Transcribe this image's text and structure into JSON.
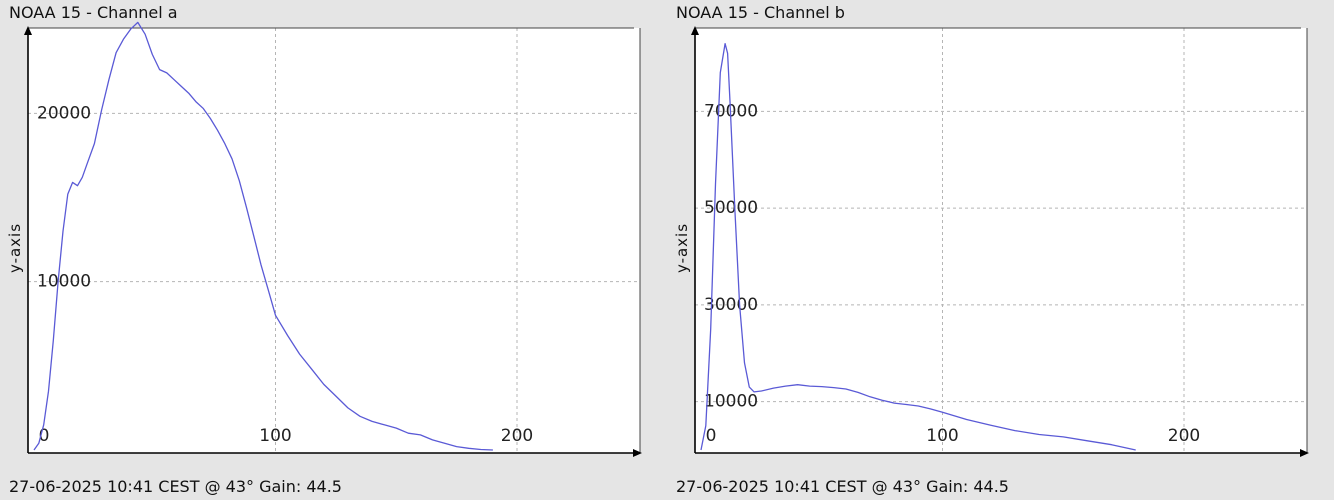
{
  "chart_data": [
    {
      "type": "line",
      "title": "NOAA 15 - Channel a",
      "footer": "27-06-2025 10:41 CEST @ 43° Gain: 44.5",
      "xlabel": "",
      "ylabel": "y-axis",
      "xlim": [
        0,
        250
      ],
      "ylim": [
        0,
        25500
      ],
      "grid": true,
      "legend": "none",
      "line_color": "#5a5ad6",
      "x_ticks": [
        0,
        100,
        200
      ],
      "x_tick_labels": [
        "0",
        "100",
        "200"
      ],
      "y_ticks": [
        10000,
        20000
      ],
      "y_tick_labels": [
        "10000",
        "20000"
      ],
      "series": [
        {
          "x": [
            0,
            2,
            4,
            6,
            8,
            10,
            12,
            14,
            16,
            18,
            20,
            22,
            25,
            28,
            31,
            34,
            37,
            40,
            43,
            46,
            49,
            52,
            55,
            58,
            61,
            64,
            67,
            70,
            73,
            76,
            79,
            82,
            85,
            88,
            91,
            94,
            97,
            100,
            105,
            110,
            115,
            120,
            125,
            130,
            135,
            140,
            145,
            150,
            155,
            160,
            165,
            170,
            175,
            180,
            185,
            190
          ],
          "values": [
            0,
            400,
            1500,
            3500,
            6500,
            10000,
            13000,
            15200,
            15900,
            15700,
            16200,
            17000,
            18200,
            20200,
            22000,
            23600,
            24400,
            25000,
            25400,
            24700,
            23500,
            22600,
            22400,
            22000,
            21600,
            21200,
            20700,
            20300,
            19700,
            19000,
            18200,
            17300,
            16000,
            14400,
            12700,
            11000,
            9500,
            8000,
            6800,
            5700,
            4800,
            3900,
            3200,
            2500,
            2000,
            1700,
            1500,
            1300,
            1000,
            900,
            600,
            400,
            200,
            100,
            30,
            0
          ]
        }
      ]
    },
    {
      "type": "line",
      "title": "NOAA 15 - Channel b",
      "footer": "27-06-2025 10:41 CEST @ 43° Gain: 44.5",
      "xlabel": "",
      "ylabel": "y-axis",
      "xlim": [
        0,
        250
      ],
      "ylim": [
        0,
        85000
      ],
      "grid": true,
      "legend": "none",
      "line_color": "#5a5ad6",
      "x_ticks": [
        0,
        100,
        200
      ],
      "x_tick_labels": [
        "0",
        "100",
        "200"
      ],
      "y_ticks": [
        10000,
        30000,
        50000,
        70000
      ],
      "y_tick_labels": [
        "10000",
        "30000",
        "50000",
        "70000"
      ],
      "series": [
        {
          "x": [
            0,
            2,
            4,
            6,
            8,
            10,
            11,
            12,
            14,
            16,
            18,
            20,
            22,
            25,
            30,
            35,
            40,
            45,
            50,
            55,
            60,
            65,
            70,
            75,
            80,
            85,
            90,
            95,
            100,
            110,
            120,
            130,
            140,
            150,
            160,
            170,
            180
          ],
          "values": [
            0,
            5000,
            25000,
            55000,
            78000,
            84000,
            82000,
            72000,
            50000,
            30000,
            18000,
            13000,
            12000,
            12200,
            12800,
            13200,
            13500,
            13200,
            13100,
            12900,
            12600,
            11900,
            11000,
            10300,
            9700,
            9400,
            9100,
            8500,
            7800,
            6300,
            5100,
            4000,
            3200,
            2700,
            1900,
            1100,
            0
          ]
        }
      ]
    }
  ]
}
